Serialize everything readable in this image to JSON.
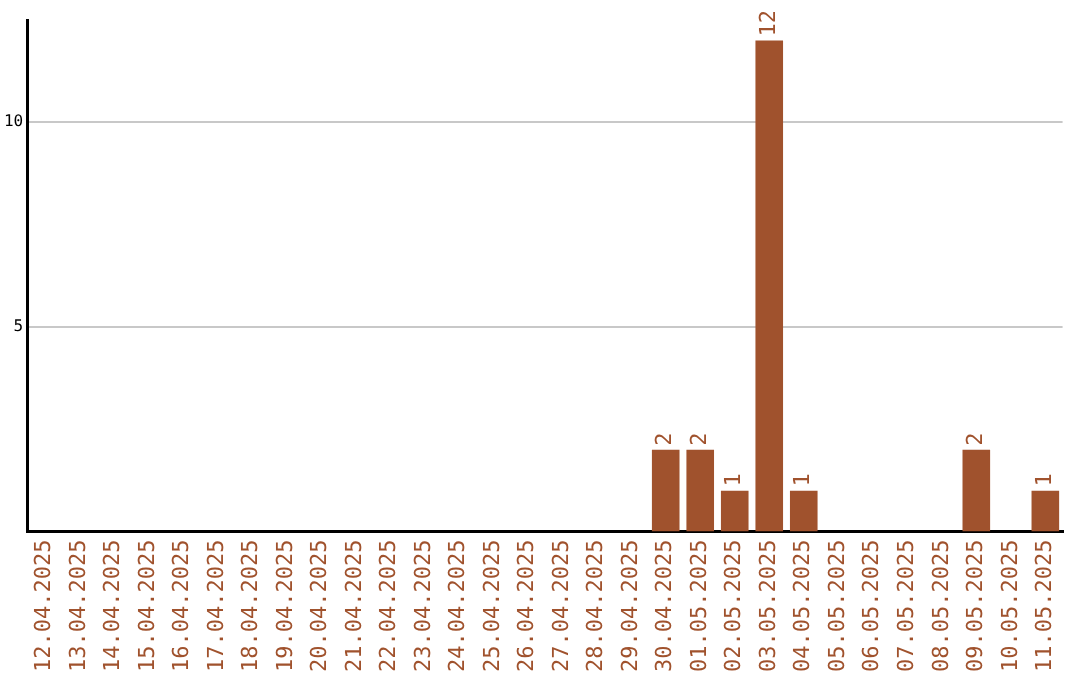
{
  "chart_data": {
    "type": "bar",
    "categories": [
      "12.04.2025",
      "13.04.2025",
      "14.04.2025",
      "15.04.2025",
      "16.04.2025",
      "17.04.2025",
      "18.04.2025",
      "19.04.2025",
      "20.04.2025",
      "21.04.2025",
      "22.04.2025",
      "23.04.2025",
      "24.04.2025",
      "25.04.2025",
      "26.04.2025",
      "27.04.2025",
      "28.04.2025",
      "29.04.2025",
      "30.04.2025",
      "01.05.2025",
      "02.05.2025",
      "03.05.2025",
      "04.05.2025",
      "05.05.2025",
      "06.05.2025",
      "07.05.2025",
      "08.05.2025",
      "09.05.2025",
      "10.05.2025",
      "11.05.2025"
    ],
    "values": [
      0,
      0,
      0,
      0,
      0,
      0,
      0,
      0,
      0,
      0,
      0,
      0,
      0,
      0,
      0,
      0,
      0,
      0,
      2,
      2,
      1,
      12,
      1,
      0,
      0,
      0,
      0,
      2,
      0,
      1
    ],
    "value_labels": [
      null,
      null,
      null,
      null,
      null,
      null,
      null,
      null,
      null,
      null,
      null,
      null,
      null,
      null,
      null,
      null,
      null,
      null,
      "2",
      "2",
      "1",
      "12",
      "1",
      null,
      null,
      null,
      null,
      "2",
      null,
      "1"
    ],
    "color": "#a0522d",
    "ylim": [
      0,
      12.5
    ],
    "yticks": [
      5,
      10
    ],
    "grid": "y",
    "legend": false
  }
}
